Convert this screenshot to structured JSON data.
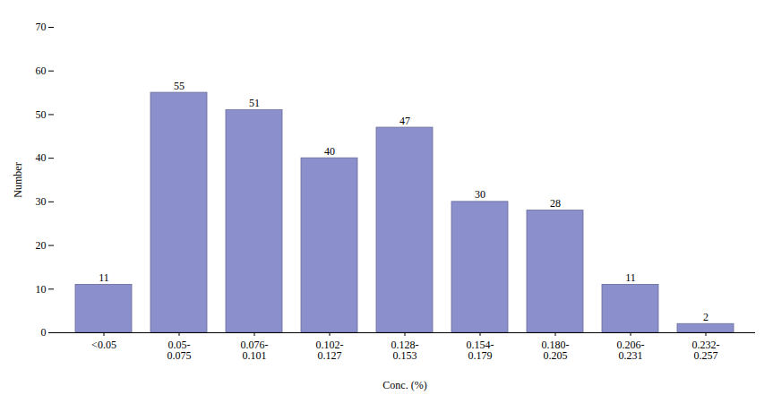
{
  "chart_data": {
    "type": "bar",
    "categories": [
      "<0.05",
      "0.05-\n0.075",
      "0.076-\n0.101",
      "0.102-\n0.127",
      "0.128-\n0.153",
      "0.154-\n0.179",
      "0.180-\n0.205",
      "0.206-\n0.231",
      "0.232-\n0.257"
    ],
    "values": [
      11,
      55,
      51,
      40,
      47,
      30,
      28,
      11,
      2
    ],
    "color": "#8B8FCC",
    "xlabel": "Conc. (%)",
    "ylabel": "Number",
    "ylim": [
      0,
      70
    ],
    "yticks": [
      0,
      10,
      20,
      30,
      40,
      50,
      60,
      70
    ],
    "grid": false,
    "data_labels": true
  }
}
